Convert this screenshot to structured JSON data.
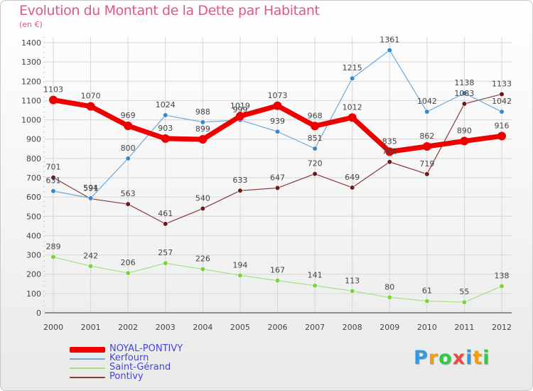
{
  "title": "Evolution du Montant de la Dette par Habitant",
  "unit": "(en €)",
  "chart_data": {
    "type": "line",
    "x": [
      "2000",
      "2001",
      "2002",
      "2003",
      "2004",
      "2005",
      "2006",
      "2007",
      "2008",
      "2009",
      "2010",
      "2011",
      "2012"
    ],
    "ylim": [
      0,
      1400
    ],
    "yticks": [
      0,
      100,
      200,
      300,
      400,
      500,
      600,
      700,
      800,
      900,
      1000,
      1100,
      1200,
      1300,
      1400
    ],
    "grid": true,
    "legend_position": "bottom-left",
    "series": [
      {
        "name": "NOYAL-PONTIVY",
        "color": "#ee0000",
        "point_color": "#ee0000",
        "width": 7,
        "values": [
          1103,
          1070,
          969,
          903,
          899,
          1019,
          1073,
          968,
          1012,
          835,
          862,
          890,
          916
        ]
      },
      {
        "name": "Kerfourn",
        "color": "#6aaadd",
        "point_color": "#3a86c8",
        "width": 1.2,
        "values": [
          631,
          594,
          800,
          1024,
          988,
          999,
          939,
          851,
          1215,
          1361,
          1042,
          1138,
          1042
        ]
      },
      {
        "name": "Saint-Gérand",
        "color": "#a6e07e",
        "point_color": "#7dd13a",
        "width": 1.2,
        "values": [
          289,
          242,
          206,
          257,
          226,
          194,
          167,
          141,
          113,
          80,
          61,
          55,
          138
        ]
      },
      {
        "name": "Pontivy",
        "color": "#8a3a3a",
        "point_color": "#6b1a1a",
        "width": 1.2,
        "values": [
          701,
          591,
          563,
          461,
          540,
          633,
          647,
          720,
          649,
          782,
          719,
          1083,
          1133
        ]
      }
    ]
  },
  "legend": [
    {
      "label": "NOYAL-PONTIVY",
      "color": "#ee0000"
    },
    {
      "label": "Kerfourn",
      "color": "#6aaadd"
    },
    {
      "label": "Saint-Gérand",
      "color": "#a6e07e"
    },
    {
      "label": "Pontivy",
      "color": "#8a3a3a"
    }
  ],
  "logo": {
    "letters": [
      "P",
      "r",
      "o",
      "x",
      "i",
      "t",
      "i"
    ],
    "colors": [
      "#3399dd",
      "#f39c12",
      "#2ecc40",
      "#e74c3c",
      "#3399dd",
      "#f39c12",
      "#2ecc40"
    ]
  }
}
